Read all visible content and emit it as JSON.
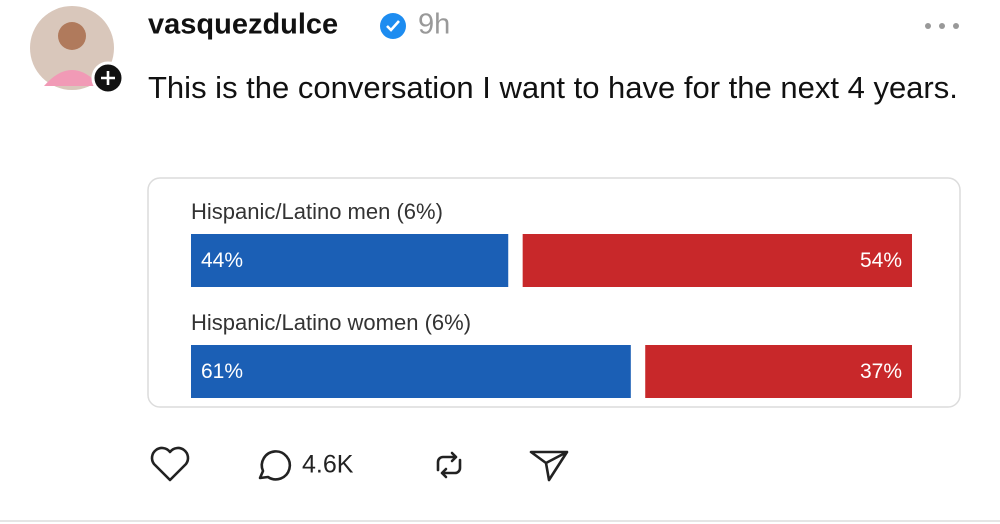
{
  "post": {
    "username": "vasquezdulce",
    "time": "9h",
    "text": "This is the conversation I want to have for the next 4 years.",
    "replies": "4.6K"
  },
  "chart_data": {
    "type": "bar",
    "orientation": "horizontal",
    "stacked": true,
    "categories": [
      "Hispanic/Latino men (6%)",
      "Hispanic/Latino women (6%)"
    ],
    "series": [
      {
        "color": "#1b5fb5",
        "values": [
          44,
          61
        ],
        "value_labels": [
          "44%",
          "61%"
        ]
      },
      {
        "color": "#c8282a",
        "values": [
          54,
          37
        ],
        "value_labels": [
          "54%",
          "37%"
        ]
      }
    ]
  }
}
